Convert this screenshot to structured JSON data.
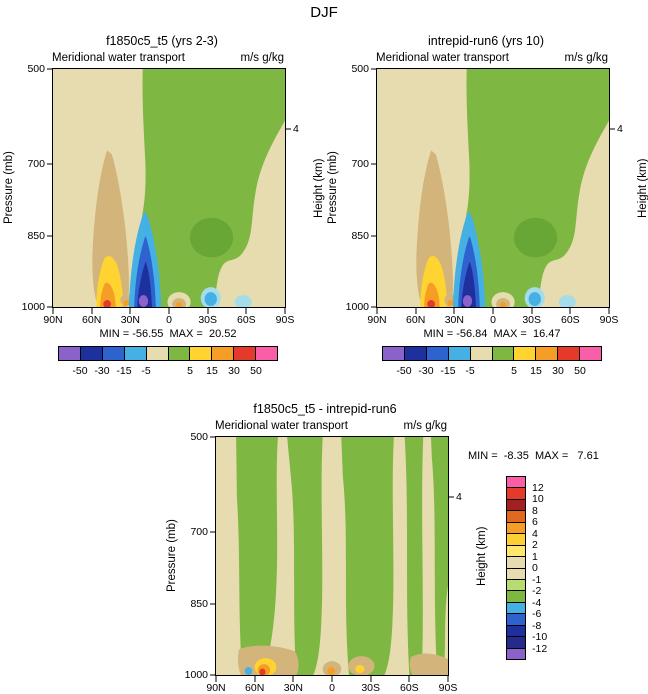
{
  "title": "DJF",
  "subtitle_left": "Meridional water transport",
  "subtitle_right": "m/s g/kg",
  "axis": {
    "y_label": "Pressure (mb)",
    "y_ticks": [
      "500",
      "700",
      "850",
      "1000"
    ],
    "x_ticks": [
      "90N",
      "60N",
      "30N",
      "0",
      "30S",
      "60S",
      "90S"
    ],
    "y2_label": "Height (km)",
    "y2_tick": "4"
  },
  "panels": [
    {
      "title": "f1850c5_t5 (yrs 2-3)",
      "minmax": "MIN = -56.55  MAX =  20.52"
    },
    {
      "title": "intrepid-run6 (yrs 10)",
      "minmax": "MIN = -56.84  MAX =  16.47"
    },
    {
      "title": "f1850c5_t5 - intrepid-run6",
      "minmax": "MIN =  -8.35  MAX =   7.61"
    }
  ],
  "palette": {
    "beige": "#e7dcb0",
    "brown": "#d3b57c",
    "green": "#7eb843",
    "green_dark": "#68a636",
    "yellow": "#ffd431",
    "orange": "#f59d25",
    "red": "#e4392b",
    "sky": "#45b0e4",
    "cyan_pale": "#a5dcea",
    "blue": "#2e62cf",
    "blue_dark": "#1e2f9e",
    "purple": "#8a62c9",
    "pink": "#fb5ea8"
  },
  "colorbar_h": {
    "labels": [
      "-50",
      "-30",
      "-15",
      "-5",
      "5",
      "15",
      "30",
      "50"
    ],
    "colors": [
      "#8a62c9",
      "#1e2f9e",
      "#2e62cf",
      "#45b0e4",
      "#e7dcb0",
      "#7eb843",
      "#ffd431",
      "#f59d25",
      "#e4392b",
      "#fb5ea8"
    ]
  },
  "colorbar_v": {
    "labels": [
      "12",
      "10",
      "8",
      "6",
      "4",
      "2",
      "1",
      "0",
      "-1",
      "-2",
      "-4",
      "-6",
      "-8",
      "-10",
      "-12"
    ],
    "colors": [
      "#fb5ea8",
      "#e4392b",
      "#a32020",
      "#e2671f",
      "#f59d25",
      "#fccf35",
      "#ffe76e",
      "#e7dcb0",
      "#e7dcb0",
      "#b8dc72",
      "#7eb843",
      "#45b0e4",
      "#2e62cf",
      "#1e2f9e",
      "#262a8a",
      "#8a62c9"
    ]
  },
  "chart_data": [
    {
      "type": "heatmap",
      "panel": "top-left",
      "season": "DJF",
      "title": "f1850c5_t5 (yrs 2-3)",
      "field": "Meridional water transport",
      "units": "m/s g/kg",
      "x_axis": {
        "ticks": [
          "90N",
          "60N",
          "30N",
          "0",
          "30S",
          "60S",
          "90S"
        ]
      },
      "y_axis": {
        "label": "Pressure (mb)",
        "ticks": [
          500,
          700,
          850,
          1000
        ],
        "range": [
          500,
          1000
        ]
      },
      "y2_axis": {
        "label": "Height (km)",
        "ticks": [
          4
        ]
      },
      "min": -56.55,
      "max": 20.52,
      "contour_levels": [
        -50,
        -30,
        -15,
        -5,
        0,
        5,
        15,
        30,
        50
      ],
      "legend_position": "below"
    },
    {
      "type": "heatmap",
      "panel": "top-right",
      "season": "DJF",
      "title": "intrepid-run6 (yrs 10)",
      "field": "Meridional water transport",
      "units": "m/s g/kg",
      "x_axis": {
        "ticks": [
          "90N",
          "60N",
          "30N",
          "0",
          "30S",
          "60S",
          "90S"
        ]
      },
      "y_axis": {
        "label": "Pressure (mb)",
        "ticks": [
          500,
          700,
          850,
          1000
        ],
        "range": [
          500,
          1000
        ]
      },
      "y2_axis": {
        "label": "Height (km)",
        "ticks": [
          4
        ]
      },
      "min": -56.84,
      "max": 16.47,
      "contour_levels": [
        -50,
        -30,
        -15,
        -5,
        0,
        5,
        15,
        30,
        50
      ],
      "legend_position": "below"
    },
    {
      "type": "heatmap",
      "panel": "bottom-difference",
      "season": "DJF",
      "title": "f1850c5_t5 - intrepid-run6",
      "field": "Meridional water transport",
      "units": "m/s g/kg",
      "x_axis": {
        "ticks": [
          "90N",
          "60N",
          "30N",
          "0",
          "30S",
          "60S",
          "90S"
        ]
      },
      "y_axis": {
        "label": "Pressure (mb)",
        "ticks": [
          500,
          700,
          850,
          1000
        ],
        "range": [
          500,
          1000
        ]
      },
      "y2_axis": {
        "label": "Height (km)",
        "ticks": [
          4
        ]
      },
      "min": -8.35,
      "max": 7.61,
      "contour_levels": [
        -12,
        -10,
        -8,
        -6,
        -4,
        -2,
        -1,
        0,
        1,
        2,
        4,
        6,
        8,
        10,
        12
      ],
      "legend_position": "right"
    }
  ]
}
